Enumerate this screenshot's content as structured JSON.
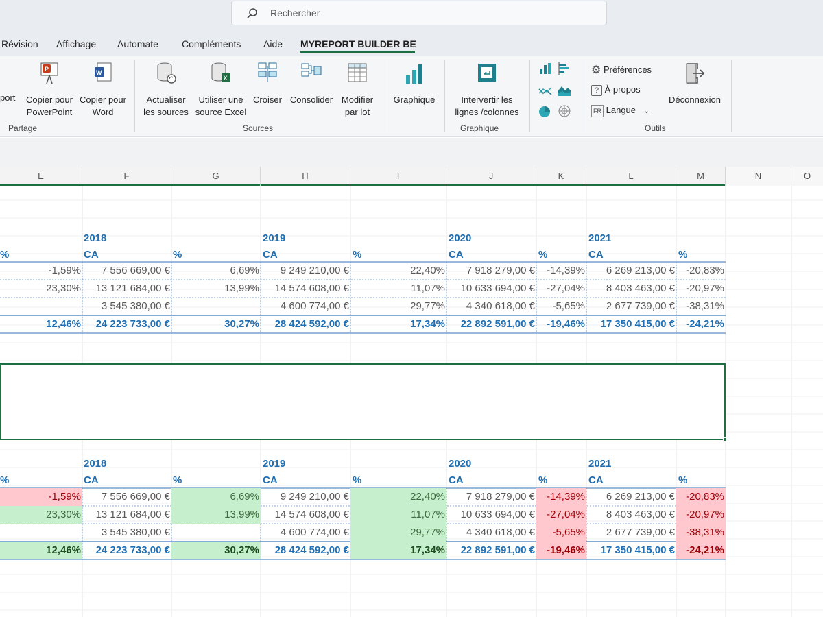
{
  "search": {
    "placeholder": "Rechercher"
  },
  "tabs": [
    {
      "label": "Révision"
    },
    {
      "label": "Affichage"
    },
    {
      "label": "Automate"
    },
    {
      "label": "Compléments"
    },
    {
      "label": "Aide"
    },
    {
      "label": "MYREPORT BUILDER BE",
      "active": true
    }
  ],
  "ribbon": {
    "partage": {
      "group_label": "Partage",
      "report_label": "port",
      "ppt_label": "Copier pour PowerPoint",
      "word_label": "Copier pour Word"
    },
    "sources": {
      "group_label": "Sources",
      "refresh_label": "Actualiser les sources",
      "excel_label": "Utiliser une source Excel",
      "cross_label": "Croiser",
      "consolidate_label": "Consolider",
      "batch_label": "Modifier par lot"
    },
    "graphique": {
      "group_label": "Graphique",
      "chart_label": "Graphique",
      "swap_label": "Intervertir les lignes /colonnes"
    },
    "outils": {
      "group_label": "Outils",
      "prefs_label": "Préférences",
      "about_label": "À propos",
      "lang_code": "FR",
      "lang_label": "Langue",
      "logout_label": "Déconnexion"
    }
  },
  "columns": [
    "E",
    "F",
    "G",
    "H",
    "I",
    "J",
    "K",
    "L",
    "M",
    "N",
    "O"
  ],
  "table": {
    "years": [
      "2018",
      "2019",
      "2020",
      "2021"
    ],
    "ca_label": "CA",
    "pct_label": "%",
    "rows": [
      {
        "e": "-1,59%",
        "f": "7 556 669,00 €",
        "g": "6,69%",
        "h": "9 249 210,00 €",
        "i": "22,40%",
        "j": "7 918 279,00 €",
        "k": "-14,39%",
        "l": "6 269 213,00 €",
        "m": "-20,83%"
      },
      {
        "e": "23,30%",
        "f": "13 121 684,00 €",
        "g": "13,99%",
        "h": "14 574 608,00 €",
        "i": "11,07%",
        "j": "10 633 694,00 €",
        "k": "-27,04%",
        "l": "8 403 463,00 €",
        "m": "-20,97%"
      },
      {
        "e": "",
        "f": "3 545 380,00 €",
        "g": "",
        "h": "4 600 774,00 €",
        "i": "29,77%",
        "j": "4 340 618,00 €",
        "k": "-5,65%",
        "l": "2 677 739,00 €",
        "m": "-38,31%"
      }
    ],
    "total": {
      "e": "12,46%",
      "f": "24 223 733,00 €",
      "g": "30,27%",
      "h": "28 424 592,00 €",
      "i": "17,34%",
      "j": "22 892 591,00 €",
      "k": "-19,46%",
      "l": "17 350 415,00 €",
      "m": "-24,21%"
    }
  },
  "colors": {
    "accent": "#1d6f42",
    "header_blue": "#1f6fb2",
    "positive_fill": "#c6efce",
    "negative_fill": "#ffc7ce"
  }
}
